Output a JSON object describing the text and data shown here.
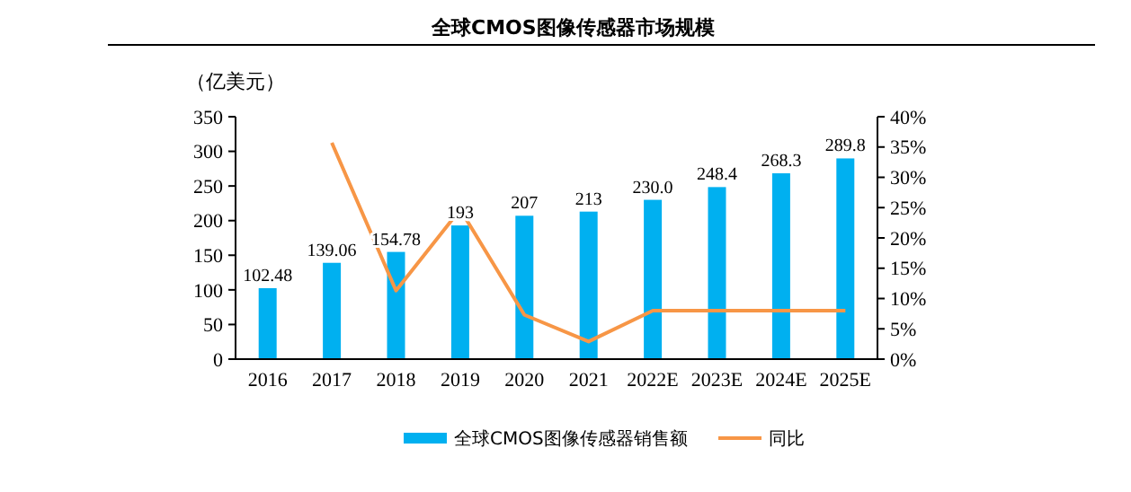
{
  "chart_data": {
    "type": "bar",
    "title": "全球CMOS图像传感器市场规模",
    "ylabel": "（亿美元）",
    "categories": [
      "2016",
      "2017",
      "2018",
      "2019",
      "2020",
      "2021",
      "2022E",
      "2023E",
      "2024E",
      "2025E"
    ],
    "series": [
      {
        "name": "全球CMOS图像传感器销售额",
        "color": "#00b0f0",
        "values": [
          102.48,
          139.06,
          154.78,
          193,
          207,
          213,
          230.0,
          248.4,
          268.3,
          289.8
        ],
        "value_labels": [
          "102.48",
          "139.06",
          "154.78",
          "193",
          "207",
          "213",
          "230.0",
          "248.4",
          "268.3",
          "289.8"
        ]
      },
      {
        "name": "同比",
        "type": "line",
        "axis": "y2",
        "color": "#f79646",
        "values": [
          null,
          35.7,
          11.3,
          24.7,
          7.3,
          2.9,
          8.0,
          8.0,
          8.0,
          8.0
        ]
      }
    ],
    "ylim": [
      0,
      350
    ],
    "yticks": [
      0,
      50,
      100,
      150,
      200,
      250,
      300,
      350
    ],
    "y2lim": [
      0,
      40
    ],
    "y2ticks": [
      {
        "value": 0,
        "label": "0%"
      },
      {
        "value": 5,
        "label": "5%"
      },
      {
        "value": 10,
        "label": "10%"
      },
      {
        "value": 15,
        "label": "15%"
      },
      {
        "value": 20,
        "label": "20%"
      },
      {
        "value": 25,
        "label": "25%"
      },
      {
        "value": 30,
        "label": "30%"
      },
      {
        "value": 35,
        "label": "35%"
      },
      {
        "value": 40,
        "label": "40%"
      }
    ],
    "legend": "bottom",
    "grid": false,
    "marker": "none",
    "line_style": "solid"
  }
}
